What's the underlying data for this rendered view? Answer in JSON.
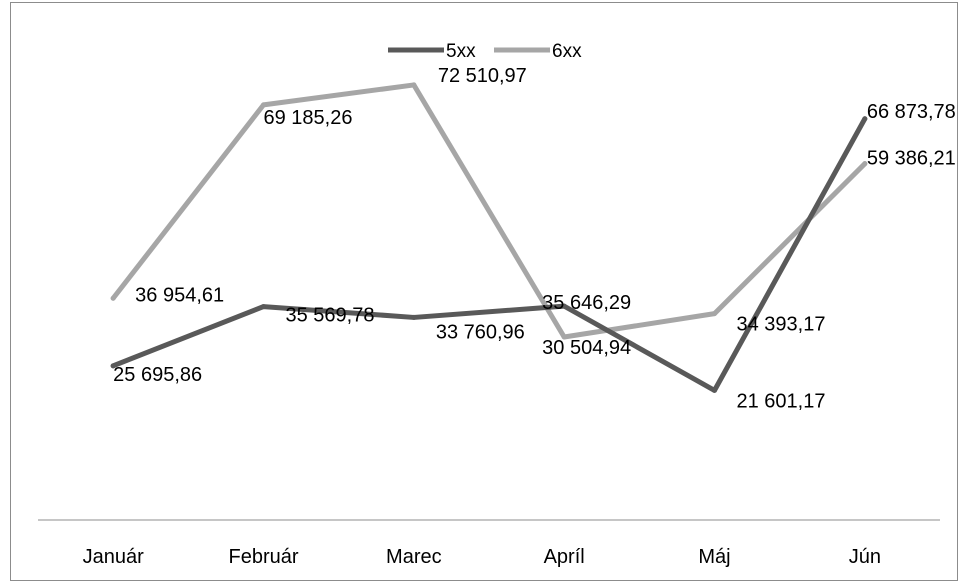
{
  "chart_data": {
    "type": "line",
    "title": "",
    "xlabel": "",
    "ylabel": "",
    "categories": [
      "Január",
      "Február",
      "Marec",
      "Apríl",
      "Máj",
      "Jún"
    ],
    "series": [
      {
        "name": "5xx",
        "color": "#595959",
        "values": [
          25695.86,
          35569.78,
          33760.96,
          35646.29,
          21601.17,
          66873.78
        ],
        "labels": [
          "25 695,86",
          "35 569,78",
          "33 760,96",
          "35 646,29",
          "21 601,17",
          "66 873,78"
        ]
      },
      {
        "name": "6xx",
        "color": "#a6a6a6",
        "values": [
          36954.61,
          69185.26,
          72510.97,
          30504.94,
          34393.17,
          59386.21
        ],
        "labels": [
          "36 954,61",
          "69 185,26",
          "72 510,97",
          "30 504,94",
          "34 393,17",
          "59 386,21"
        ]
      }
    ],
    "ylim": [
      0,
      80000
    ],
    "grid": false,
    "legend": "top-center",
    "y_axis_visible": false
  }
}
